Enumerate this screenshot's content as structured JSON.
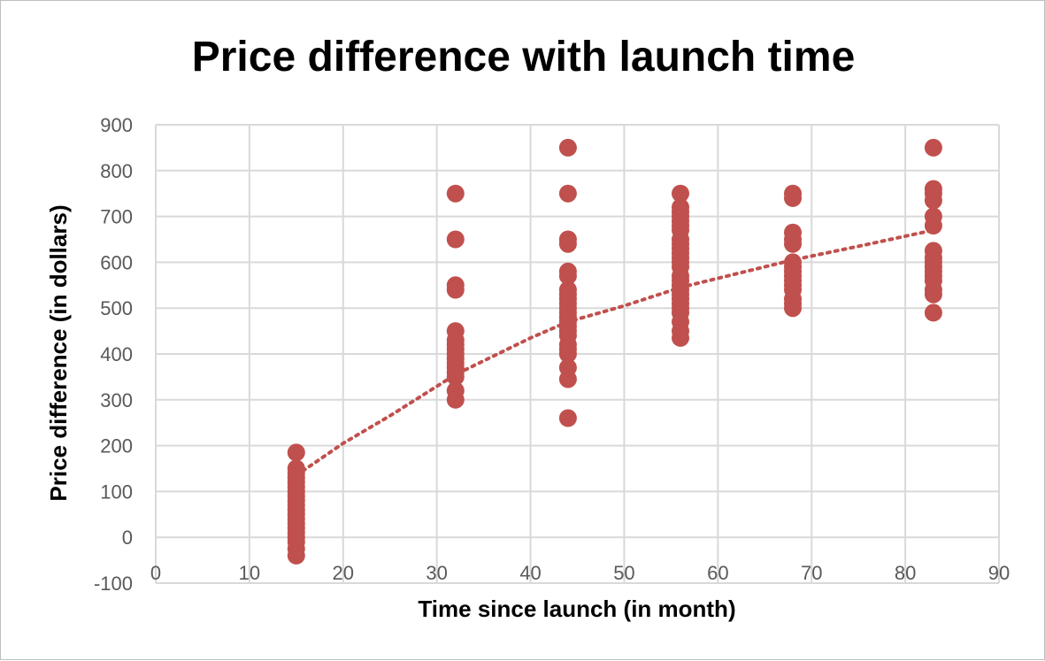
{
  "chart_data": {
    "type": "scatter",
    "title": "Price difference with launch time",
    "xlabel": "Time since launch (in month)",
    "ylabel": "Price difference (in dollars)",
    "xlim": [
      0,
      90
    ],
    "ylim": [
      -100,
      900
    ],
    "x_ticks": [
      "0",
      "10",
      "20",
      "30",
      "40",
      "50",
      "60",
      "70",
      "80",
      "90"
    ],
    "y_ticks": [
      "-100",
      "0",
      "100",
      "200",
      "300",
      "400",
      "500",
      "600",
      "700",
      "800",
      "900"
    ],
    "grid": true,
    "legend": "none",
    "marker_color": "#c0504d",
    "trendline": {
      "style": "dotted",
      "kind": "logarithmic",
      "x_range": [
        15,
        83
      ],
      "points": [
        [
          15,
          135
        ],
        [
          20,
          205
        ],
        [
          25,
          265
        ],
        [
          32,
          355
        ],
        [
          40,
          435
        ],
        [
          44,
          470
        ],
        [
          50,
          505
        ],
        [
          56,
          545
        ],
        [
          60,
          565
        ],
        [
          68,
          605
        ],
        [
          75,
          635
        ],
        [
          83,
          670
        ]
      ]
    },
    "series": [
      {
        "x": [
          15,
          15,
          15,
          15,
          15,
          15,
          15,
          15,
          15,
          15,
          15,
          15,
          15,
          15,
          15,
          15,
          15,
          15,
          15,
          15
        ],
        "y": [
          185,
          150,
          140,
          130,
          120,
          110,
          100,
          90,
          80,
          70,
          60,
          50,
          40,
          30,
          20,
          10,
          0,
          -10,
          -25,
          -40
        ]
      },
      {
        "x": [
          32,
          32,
          32,
          32,
          32,
          32,
          32,
          32,
          32,
          32,
          32,
          32,
          32,
          32,
          32,
          32
        ],
        "y": [
          750,
          650,
          550,
          540,
          450,
          430,
          420,
          410,
          400,
          390,
          380,
          370,
          360,
          350,
          320,
          300
        ]
      },
      {
        "x": [
          44,
          44,
          44,
          44,
          44,
          44,
          44,
          44,
          44,
          44,
          44,
          44,
          44,
          44,
          44,
          44,
          44,
          44,
          44,
          44,
          44,
          44,
          44
        ],
        "y": [
          850,
          750,
          650,
          640,
          580,
          570,
          540,
          530,
          520,
          510,
          500,
          490,
          480,
          470,
          460,
          450,
          440,
          420,
          410,
          400,
          370,
          345,
          260
        ]
      },
      {
        "x": [
          56,
          56,
          56,
          56,
          56,
          56,
          56,
          56,
          56,
          56,
          56,
          56,
          56,
          56,
          56,
          56,
          56,
          56,
          56,
          56,
          56,
          56,
          56,
          56,
          56,
          56
        ],
        "y": [
          750,
          720,
          710,
          700,
          690,
          680,
          670,
          650,
          640,
          630,
          620,
          610,
          600,
          590,
          570,
          560,
          550,
          540,
          530,
          520,
          510,
          500,
          490,
          470,
          450,
          435
        ]
      },
      {
        "x": [
          68,
          68,
          68,
          68,
          68,
          68,
          68,
          68,
          68,
          68,
          68,
          68,
          68,
          68,
          68
        ],
        "y": [
          750,
          740,
          665,
          650,
          640,
          600,
          590,
          580,
          570,
          560,
          550,
          540,
          520,
          510,
          500
        ]
      },
      {
        "x": [
          83,
          83,
          83,
          83,
          83,
          83,
          83,
          83,
          83,
          83,
          83,
          83,
          83,
          83,
          83,
          83
        ],
        "y": [
          850,
          760,
          750,
          735,
          700,
          680,
          625,
          610,
          600,
          590,
          580,
          570,
          560,
          540,
          530,
          490
        ]
      }
    ]
  }
}
